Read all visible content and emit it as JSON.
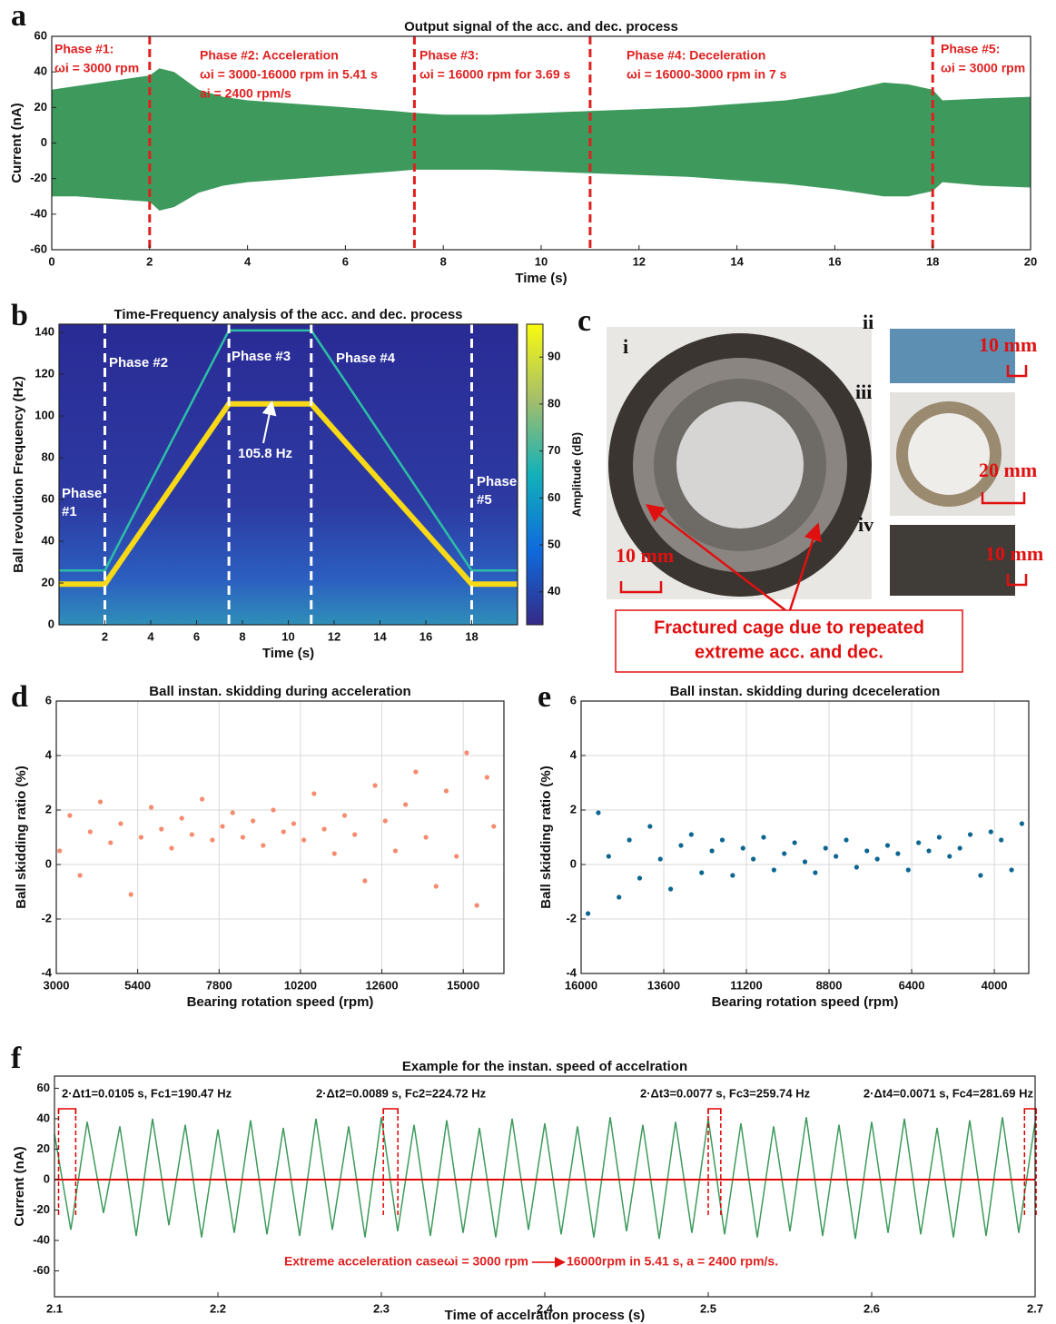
{
  "chart_data": [
    {
      "type": "envelope",
      "panel": "a",
      "title": "Output signal of the acc. and dec. process",
      "xlabel": "Time (s)",
      "ylabel": "Current (nA)",
      "xlim": [
        0,
        20
      ],
      "xticks": [
        0,
        2,
        4,
        6,
        8,
        10,
        12,
        14,
        16,
        18,
        20
      ],
      "ylim": [
        -60,
        60
      ],
      "yticks": [
        -60,
        -40,
        -20,
        0,
        20,
        40,
        60
      ],
      "grid": false,
      "color": "#3d9a5c",
      "x": [
        0,
        0.5,
        1,
        1.5,
        2,
        2.2,
        2.5,
        3,
        3.5,
        4,
        5,
        6,
        7,
        7.4,
        8,
        9,
        10,
        11,
        12,
        13,
        14,
        15,
        16,
        16.5,
        17,
        17.5,
        18,
        18.2,
        19,
        20
      ],
      "upper": [
        30,
        32,
        34,
        36,
        38,
        42,
        40,
        30,
        26,
        24,
        22,
        20,
        18,
        17,
        16,
        16,
        17,
        18,
        19,
        20,
        22,
        24,
        28,
        31,
        34,
        33,
        30,
        24,
        25,
        26
      ],
      "lower": [
        -30,
        -30,
        -31,
        -32,
        -33,
        -38,
        -36,
        -28,
        -24,
        -22,
        -20,
        -18,
        -16,
        -15,
        -15,
        -15,
        -16,
        -17,
        -18,
        -19,
        -21,
        -23,
        -26,
        -28,
        -30,
        -30,
        -27,
        -22,
        -24,
        -25
      ],
      "phase_lines": [
        2,
        7.41,
        11,
        18
      ],
      "phase_color": "#e02020",
      "annotations": [
        [
          "Phase #1:",
          "ωi = 3000 rpm"
        ],
        [
          "Phase #2: Acceleration",
          "ωi = 3000-16000 rpm in 5.41 s",
          "ai = 2400 rpm/s"
        ],
        [
          "Phase #3:",
          "ωi = 16000 rpm for 3.69 s"
        ],
        [
          "Phase #4:  Deceleration",
          "ωi = 16000-3000 rpm in 7 s"
        ],
        [
          "Phase #5:",
          "ωi = 3000 rpm"
        ]
      ]
    },
    {
      "type": "spectrogram",
      "panel": "b",
      "title": "Time-Frequency analysis of the acc. and dec. process",
      "xlabel": "Time (s)",
      "ylabel": "Ball revolution Frequency (Hz)",
      "xlim": [
        0,
        20
      ],
      "xticks": [
        2,
        4,
        6,
        8,
        10,
        12,
        14,
        16,
        18
      ],
      "ylim": [
        0,
        144
      ],
      "yticks": [
        0,
        20,
        40,
        60,
        80,
        100,
        120,
        140
      ],
      "grid": false,
      "clim": [
        33,
        97
      ],
      "cticks": [
        40,
        50,
        60,
        70,
        80,
        90
      ],
      "clabel": "Amplitude (dB)",
      "ridges": [
        {
          "color": "#f7d917",
          "x": [
            0,
            2,
            7.41,
            11,
            18,
            20
          ],
          "values": [
            19.5,
            19.5,
            105.8,
            105.8,
            19.5,
            19.5
          ]
        },
        {
          "color": "#2cbfa5",
          "x": [
            0,
            2,
            7.41,
            11,
            18,
            20
          ],
          "values": [
            26,
            26,
            141,
            141,
            26,
            26
          ]
        }
      ],
      "phase_lines": [
        2,
        7.41,
        11,
        18
      ],
      "annotations": [
        [
          "Phase",
          "#1"
        ],
        [
          "Phase #2"
        ],
        [
          "Phase #3"
        ],
        [
          "Phase #4"
        ],
        [
          "Phase",
          "#5"
        ],
        [
          "105.8 Hz"
        ]
      ]
    },
    {
      "type": "scatter",
      "panel": "d",
      "title": "Ball instan. skidding during acceleration",
      "xlabel": "Bearing rotation speed (rpm)",
      "ylabel": "Ball skidding ratio (%)",
      "xlim": [
        3000,
        16200
      ],
      "xticks": [
        3000,
        5400,
        7800,
        10200,
        12600,
        15000
      ],
      "ylim": [
        -4,
        6
      ],
      "yticks": [
        -4,
        -2,
        0,
        2,
        4,
        6
      ],
      "grid": true,
      "color": "#f58b6f",
      "x": [
        3100,
        3400,
        3700,
        4000,
        4300,
        4600,
        4900,
        5200,
        5500,
        5800,
        6100,
        6400,
        6700,
        7000,
        7300,
        7600,
        7900,
        8200,
        8500,
        8800,
        9100,
        9400,
        9700,
        10000,
        10300,
        10600,
        10900,
        11200,
        11500,
        11800,
        12100,
        12400,
        12700,
        13000,
        13300,
        13600,
        13900,
        14200,
        14500,
        14800,
        15100,
        15400,
        15700,
        15900
      ],
      "values": [
        0.5,
        1.8,
        -0.4,
        1.2,
        2.3,
        0.8,
        1.5,
        -1.1,
        1.0,
        2.1,
        1.3,
        0.6,
        1.7,
        1.1,
        2.4,
        0.9,
        1.4,
        1.9,
        1.0,
        1.6,
        0.7,
        2.0,
        1.2,
        1.5,
        0.9,
        2.6,
        1.3,
        0.4,
        1.8,
        1.1,
        -0.6,
        2.9,
        1.6,
        0.5,
        2.2,
        3.4,
        1.0,
        -0.8,
        2.7,
        0.3,
        4.1,
        -1.5,
        3.2,
        1.4
      ]
    },
    {
      "type": "scatter",
      "panel": "e",
      "title": "Ball instan. skidding during dceceleration",
      "xlabel": "Bearing rotation speed (rpm)",
      "ylabel": "Ball skidding ratio (%)",
      "xlim": [
        16000,
        3000
      ],
      "xticks": [
        16000,
        13600,
        11200,
        8800,
        6400,
        4000
      ],
      "ylim": [
        -4,
        6
      ],
      "yticks": [
        -4,
        -2,
        0,
        2,
        4,
        6
      ],
      "grid": true,
      "color": "#0d6690",
      "x": [
        15800,
        15500,
        15200,
        14900,
        14600,
        14300,
        14000,
        13700,
        13400,
        13100,
        12800,
        12500,
        12200,
        11900,
        11600,
        11300,
        11000,
        10700,
        10400,
        10100,
        9800,
        9500,
        9200,
        8900,
        8600,
        8300,
        8000,
        7700,
        7400,
        7100,
        6800,
        6500,
        6200,
        5900,
        5600,
        5300,
        5000,
        4700,
        4400,
        4100,
        3800,
        3500,
        3200
      ],
      "values": [
        -1.8,
        1.9,
        0.3,
        -1.2,
        0.9,
        -0.5,
        1.4,
        0.2,
        -0.9,
        0.7,
        1.1,
        -0.3,
        0.5,
        0.9,
        -0.4,
        0.6,
        0.2,
        1.0,
        -0.2,
        0.4,
        0.8,
        0.1,
        -0.3,
        0.6,
        0.3,
        0.9,
        -0.1,
        0.5,
        0.2,
        0.7,
        0.4,
        -0.2,
        0.8,
        0.5,
        1.0,
        0.3,
        0.6,
        1.1,
        -0.4,
        1.2,
        0.9,
        -0.2,
        1.5
      ]
    },
    {
      "type": "line",
      "panel": "f",
      "title": "Example for the instan. speed of accelration",
      "xlabel": "Time of accelration process (s)",
      "ylabel": "Current (nA)",
      "xlim": [
        2.1,
        2.7
      ],
      "xticks": [
        2.1,
        2.2,
        2.3,
        2.4,
        2.5,
        2.6,
        2.7
      ],
      "ylim": [
        -77,
        68
      ],
      "yticks": [
        -60,
        -40,
        -20,
        0,
        20,
        40,
        60
      ],
      "grid": false,
      "color": "#3d9a5c",
      "x": [
        2.1,
        2.11,
        2.12,
        2.13,
        2.14,
        2.15,
        2.16,
        2.17,
        2.18,
        2.19,
        2.2,
        2.21,
        2.22,
        2.23,
        2.24,
        2.25,
        2.26,
        2.27,
        2.28,
        2.29,
        2.3,
        2.31,
        2.32,
        2.33,
        2.34,
        2.35,
        2.36,
        2.37,
        2.38,
        2.39,
        2.4,
        2.41,
        2.42,
        2.43,
        2.44,
        2.45,
        2.46,
        2.47,
        2.48,
        2.49,
        2.5,
        2.51,
        2.52,
        2.53,
        2.54,
        2.55,
        2.56,
        2.57,
        2.58,
        2.59,
        2.6,
        2.61,
        2.62,
        2.63,
        2.64,
        2.65,
        2.66,
        2.67,
        2.68,
        2.69,
        2.7
      ],
      "values": [
        30,
        -33,
        38,
        -22,
        35,
        -37,
        40,
        -30,
        36,
        -38,
        33,
        -35,
        39,
        -36,
        34,
        -37,
        40,
        -33,
        35,
        -38,
        41,
        -34,
        36,
        -37,
        39,
        -35,
        34,
        -38,
        40,
        -33,
        37,
        -36,
        35,
        -38,
        41,
        -34,
        36,
        -39,
        38,
        -35,
        40,
        -36,
        37,
        -38,
        35,
        -34,
        41,
        -37,
        36,
        -39,
        38,
        -35,
        40,
        -36,
        34,
        -38,
        39,
        -37,
        41,
        -35,
        38
      ],
      "reference_line": {
        "value": 0,
        "color": "#e00000"
      },
      "intervals": [
        [
          2.1025,
          2.113
        ],
        [
          2.3012,
          2.3101
        ],
        [
          2.5,
          2.5077
        ],
        [
          2.6935,
          2.7006
        ]
      ],
      "annotations": [
        "2·Δt1=0.0105 s, Fc1=190.47 Hz",
        "2·Δt2=0.0089 s, Fc2=224.72 Hz",
        "2·Δt3=0.0077 s, Fc3=259.74 Hz",
        "2·Δt4=0.0071 s, Fc4=281.69 Hz"
      ],
      "note": [
        "Extreme acceleration caseωi = 3000 rpm",
        "16000rpm in 5.41 s,   a = 2400 rpm/s."
      ]
    }
  ],
  "photo_panel": {
    "panel": "c",
    "labels": [
      "i",
      "ii",
      "iii",
      "iv"
    ],
    "scale_bars": [
      "10 mm",
      "10 mm",
      "20 mm",
      "10 mm"
    ],
    "callout": [
      "Fractured cage due to repeated",
      "extreme acc. and dec."
    ]
  }
}
